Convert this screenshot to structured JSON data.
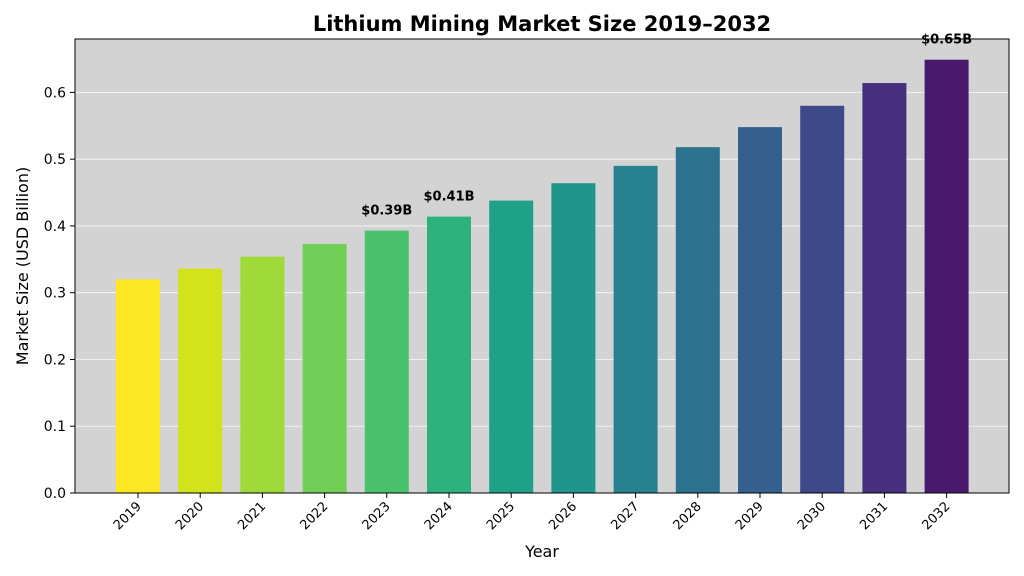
{
  "chart_data": {
    "type": "bar",
    "title": "Lithium Mining Market Size 2019–2032",
    "xlabel": "Year",
    "ylabel": "Market Size (USD Billion)",
    "categories": [
      "2019",
      "2020",
      "2021",
      "2022",
      "2023",
      "2024",
      "2025",
      "2026",
      "2027",
      "2028",
      "2029",
      "2030",
      "2031",
      "2032"
    ],
    "values": [
      0.32,
      0.336,
      0.354,
      0.373,
      0.393,
      0.414,
      0.438,
      0.464,
      0.49,
      0.518,
      0.548,
      0.58,
      0.614,
      0.649
    ],
    "ylim": [
      0,
      0.68
    ],
    "yticks": [
      "0.0",
      "0.1",
      "0.2",
      "0.3",
      "0.4",
      "0.5",
      "0.6"
    ],
    "ytick_values": [
      0,
      0.1,
      0.2,
      0.3,
      0.4,
      0.5,
      0.6
    ],
    "grid": true,
    "colors": [
      "#fde725",
      "#d2e21b",
      "#a0da39",
      "#70cf57",
      "#4ac16d",
      "#2db27d",
      "#1fa187",
      "#1f958b",
      "#26828e",
      "#2c728e",
      "#355f8d",
      "#3e4989",
      "#482f7e",
      "#471a6b"
    ],
    "background": "#d3d3d3",
    "annotations": [
      {
        "index": 4,
        "text": "$0.39B"
      },
      {
        "index": 5,
        "text": "$0.41B"
      },
      {
        "index": 13,
        "text": "$0.65B"
      }
    ]
  }
}
